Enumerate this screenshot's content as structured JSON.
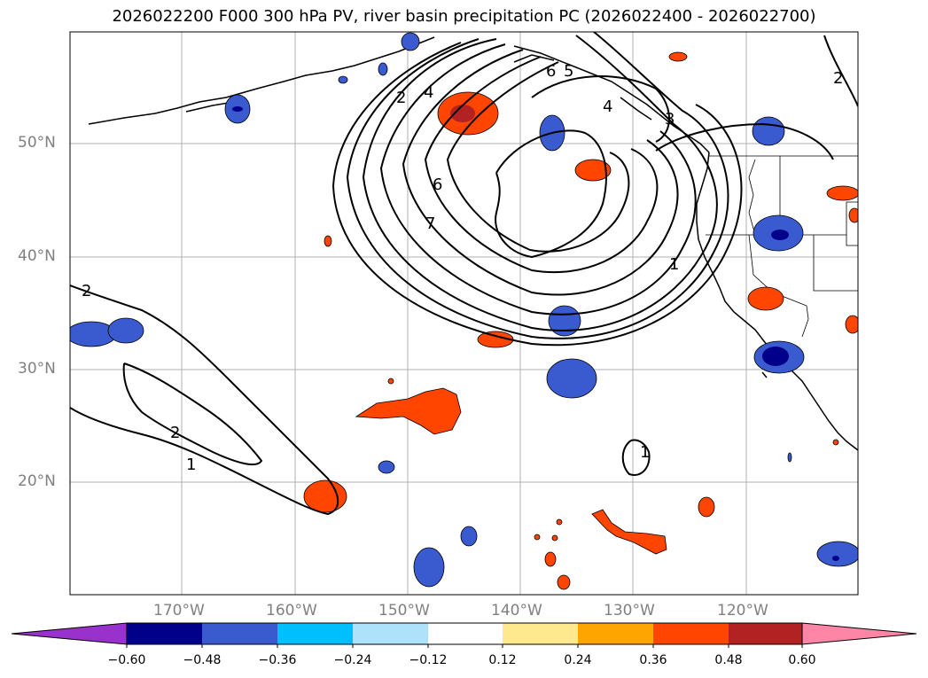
{
  "title": "2026022200 F000 300 hPa PV, river basin precipitation PC (2026022400 - 2026022700)",
  "map": {
    "lat_labels": [
      "50°N",
      "40°N",
      "30°N",
      "20°N"
    ],
    "lon_labels": [
      "170°W",
      "160°W",
      "150°W",
      "140°W",
      "130°W",
      "120°W"
    ],
    "contour_labels": [
      "2",
      "4",
      "6",
      "5",
      "4",
      "3",
      "6",
      "7",
      "1",
      "2",
      "2",
      "1",
      "1",
      "2"
    ]
  },
  "colorbar": {
    "ticks": [
      "−0.60",
      "−0.48",
      "−0.36",
      "−0.24",
      "−0.12",
      "0.12",
      "0.24",
      "0.36",
      "0.48",
      "0.60"
    ],
    "colors": [
      "#9932cc",
      "#00008b",
      "#3a5bcf",
      "#00bfff",
      "#ade2fa",
      "#ffffff",
      "#ffe98e",
      "#ffa500",
      "#ff4500",
      "#b22222",
      "#ff85a6"
    ]
  },
  "colors": {
    "neg_strong": "#00008b",
    "neg_mid": "#3a5bcf",
    "neg_light": "#00bfff",
    "pos_light": "#ffe98e",
    "pos_mid": "#ffa500",
    "pos_strong": "#ff4500",
    "pos_max": "#b22222"
  }
}
